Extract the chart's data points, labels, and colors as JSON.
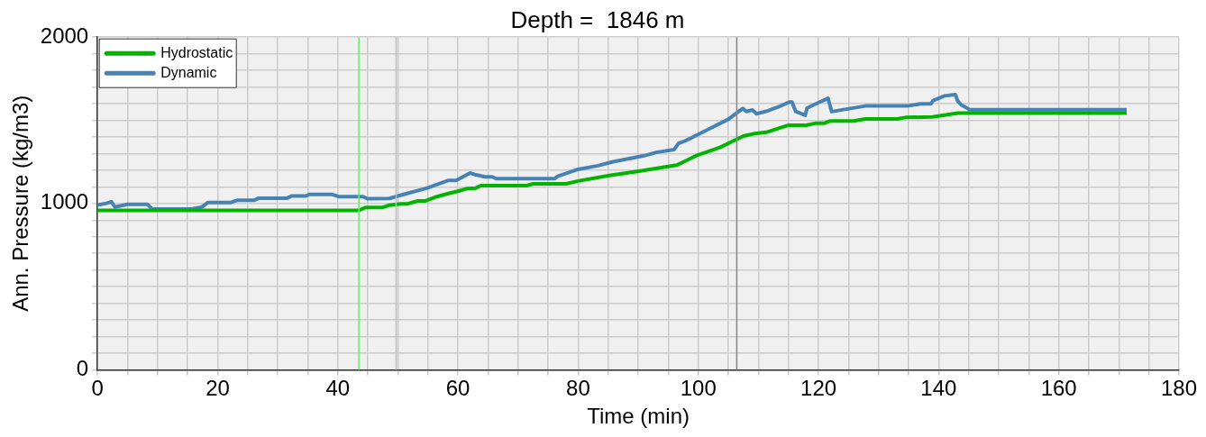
{
  "chart_data": {
    "type": "line",
    "title": "Depth =  1846 m",
    "xlabel": "Time (min)",
    "ylabel": "Ann. Pressure (kg/m3)",
    "xlim": [
      0,
      180
    ],
    "xticks": [
      0,
      {
        "value": 5,
        "label": null
      },
      {
        "value": 10,
        "label": null
      },
      {
        "value": 15,
        "label": null
      },
      20,
      {
        "value": 25,
        "label": null
      },
      {
        "value": 30,
        "label": null
      },
      {
        "value": 35,
        "label": null
      },
      40,
      {
        "value": 45,
        "label": null
      },
      {
        "value": 50,
        "label": null
      },
      {
        "value": 55,
        "label": null
      },
      60,
      {
        "value": 65,
        "label": null
      },
      {
        "value": 70,
        "label": null
      },
      {
        "value": 75,
        "label": null
      },
      80,
      {
        "value": 85,
        "label": null
      },
      {
        "value": 90,
        "label": null
      },
      {
        "value": 95,
        "label": null
      },
      100,
      {
        "value": 105,
        "label": null
      },
      {
        "value": 110,
        "label": null
      },
      {
        "value": 115,
        "label": null
      },
      120,
      {
        "value": 125,
        "label": null
      },
      {
        "value": 130,
        "label": null
      },
      {
        "value": 135,
        "label": null
      },
      140,
      {
        "value": 145,
        "label": null
      },
      {
        "value": 150,
        "label": null
      },
      {
        "value": 155,
        "label": null
      },
      160,
      {
        "value": 165,
        "label": null
      },
      {
        "value": 170,
        "label": null
      },
      {
        "value": 175,
        "label": null
      },
      180
    ],
    "ylim": [
      0,
      2000
    ],
    "yticks": [
      0,
      {
        "value": 100,
        "label": null
      },
      {
        "value": 200,
        "label": null
      },
      {
        "value": 300,
        "label": null
      },
      {
        "value": 400,
        "label": null
      },
      {
        "value": 500,
        "label": null
      },
      {
        "value": 600,
        "label": null
      },
      {
        "value": 700,
        "label": null
      },
      {
        "value": 800,
        "label": null
      },
      {
        "value": 900,
        "label": null
      },
      1000,
      {
        "value": 1100,
        "label": null
      },
      {
        "value": 1200,
        "label": null
      },
      {
        "value": 1300,
        "label": null
      },
      {
        "value": 1400,
        "label": null
      },
      {
        "value": 1500,
        "label": null
      },
      {
        "value": 1600,
        "label": null
      },
      {
        "value": 1700,
        "label": null
      },
      {
        "value": 1800,
        "label": null
      },
      {
        "value": 1900,
        "label": null
      },
      2000
    ],
    "grid": true,
    "legend": "top left",
    "marker": "none",
    "line_style": "solid",
    "ref_lines": [
      {
        "axis": "x",
        "value": 43.5,
        "label": null,
        "color": "#66ee66"
      },
      {
        "axis": "x",
        "value": 49.7,
        "label": null,
        "color": "#bbbbbb"
      },
      {
        "axis": "x",
        "value": 106.4,
        "label": null,
        "color": "#888888"
      }
    ],
    "series": [
      {
        "name": "Hydrostatic",
        "color": "#00b400",
        "x": [
          0,
          43.5,
          44.6,
          47.5,
          48.6,
          50.4,
          51.5,
          53.3,
          54.5,
          56.5,
          58.4,
          60.1,
          61.6,
          63,
          63.8,
          71.4,
          72.5,
          78,
          80,
          85.2,
          90.1,
          96.4,
          99.7,
          103.6,
          107.5,
          109.4,
          111.3,
          114.9,
          118,
          119.6,
          121,
          122,
          125.9,
          127.8,
          133.1,
          134.5,
          139,
          143.2,
          171.3
        ],
        "values": [
          958,
          958,
          976,
          976,
          990,
          997,
          997,
          1015,
          1015,
          1041,
          1060,
          1075,
          1090,
          1093,
          1107,
          1107,
          1118,
          1118,
          1135,
          1168,
          1194,
          1230,
          1288,
          1337,
          1405,
          1420,
          1428,
          1470,
          1470,
          1483,
          1483,
          1496,
          1496,
          1508,
          1508,
          1517,
          1520,
          1543,
          1543
        ]
      },
      {
        "name": "Dynamic",
        "color": "#4682b4",
        "x": [
          0,
          1.5,
          2.3,
          2.9,
          5,
          8.3,
          9.1,
          15.7,
          17.4,
          18.4,
          22.2,
          23.2,
          26.1,
          26.8,
          31.6,
          32.3,
          34.7,
          35.2,
          39.1,
          40.1,
          44.2,
          44.9,
          48.6,
          50,
          51.5,
          54.8,
          58.3,
          59.7,
          62,
          63,
          64.5,
          65.7,
          66.4,
          76.1,
          76.6,
          80,
          83.3,
          85.8,
          91,
          93,
          96,
          96.7,
          97.8,
          100.7,
          105,
          107.4,
          108,
          109,
          109.7,
          111.3,
          113.3,
          115.2,
          115.6,
          116.2,
          117.8,
          118.1,
          119.3,
          121.6,
          122.2,
          127.8,
          134.8,
          137,
          138.7,
          139.1,
          141,
          142.8,
          143.2,
          143.7,
          145.2,
          171.3
        ],
        "values": [
          991,
          1001,
          1010,
          979,
          995,
          995,
          967,
          967,
          979,
          1006,
          1006,
          1019,
          1019,
          1032,
          1032,
          1045,
          1045,
          1054,
          1054,
          1041,
          1041,
          1029,
          1030,
          1045,
          1060,
          1092,
          1138,
          1138,
          1183,
          1172,
          1160,
          1160,
          1149,
          1149,
          1164,
          1205,
          1227,
          1251,
          1287,
          1307,
          1324,
          1361,
          1376,
          1428,
          1506,
          1571,
          1553,
          1562,
          1539,
          1554,
          1580,
          1610,
          1610,
          1554,
          1530,
          1573,
          1595,
          1632,
          1552,
          1586,
          1586,
          1599,
          1599,
          1619,
          1647,
          1654,
          1614,
          1595,
          1563,
          1563
        ]
      }
    ]
  }
}
